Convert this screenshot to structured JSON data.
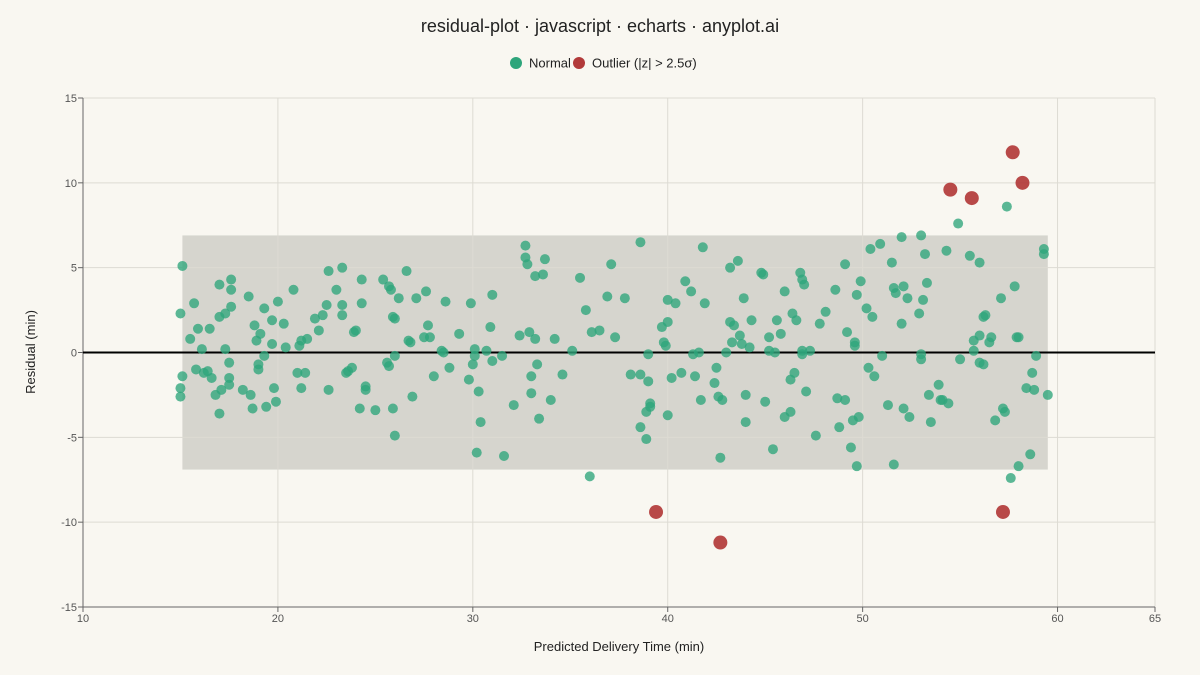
{
  "colors": {
    "background": "#f9f7f1",
    "normal": "#2ea57b",
    "outlier": "#b23a3a",
    "band": "#d6d5ce",
    "grid": "#dddbd3",
    "zero_line": "#000000",
    "axis": "#666666"
  },
  "chart_data": {
    "type": "scatter",
    "title": "residual-plot · javascript · echarts · anyplot.ai",
    "xlabel": "Predicted Delivery Time (min)",
    "ylabel": "Residual (min)",
    "xlim": [
      10,
      65
    ],
    "ylim": [
      -15,
      15
    ],
    "x_ticks": [
      10,
      20,
      30,
      40,
      50,
      60,
      65
    ],
    "y_ticks": [
      -15,
      -10,
      -5,
      0,
      5,
      10,
      15
    ],
    "grid": true,
    "legend_position": "top-center",
    "reference_line_y": 0,
    "band": {
      "y_min": -6.9,
      "y_max": 6.9,
      "x_min": 15.1,
      "x_max": 59.5
    },
    "series": [
      {
        "name": "Normal",
        "points": [
          [
            15.1,
            5.1
          ],
          [
            15.0,
            2.3
          ],
          [
            15.1,
            -1.4
          ],
          [
            15.0,
            -2.1
          ],
          [
            15.0,
            -2.6
          ],
          [
            15.5,
            0.8
          ],
          [
            15.7,
            2.9
          ],
          [
            15.9,
            1.4
          ],
          [
            16.1,
            0.2
          ],
          [
            15.8,
            -1.0
          ],
          [
            16.2,
            -1.2
          ],
          [
            16.4,
            -1.1
          ],
          [
            16.5,
            1.4
          ],
          [
            16.6,
            -1.5
          ],
          [
            16.8,
            -2.5
          ],
          [
            17.0,
            2.1
          ],
          [
            17.0,
            4.0
          ],
          [
            17.1,
            -2.2
          ],
          [
            17.0,
            -3.6
          ],
          [
            17.3,
            2.3
          ],
          [
            17.3,
            0.2
          ],
          [
            17.5,
            -0.6
          ],
          [
            17.5,
            -1.5
          ],
          [
            17.5,
            -1.9
          ],
          [
            17.6,
            2.7
          ],
          [
            17.6,
            4.3
          ],
          [
            17.6,
            3.7
          ],
          [
            18.2,
            -2.2
          ],
          [
            18.5,
            3.3
          ],
          [
            18.6,
            -2.5
          ],
          [
            18.7,
            -3.3
          ],
          [
            18.8,
            1.6
          ],
          [
            18.9,
            0.7
          ],
          [
            19.0,
            -0.7
          ],
          [
            19.0,
            -1.0
          ],
          [
            19.1,
            1.1
          ],
          [
            19.3,
            2.6
          ],
          [
            19.4,
            -3.2
          ],
          [
            19.3,
            -0.2
          ],
          [
            19.7,
            1.9
          ],
          [
            19.7,
            0.5
          ],
          [
            19.8,
            -2.1
          ],
          [
            19.9,
            -2.9
          ],
          [
            20.0,
            3.0
          ],
          [
            20.3,
            1.7
          ],
          [
            20.4,
            0.3
          ],
          [
            20.8,
            3.7
          ],
          [
            21.0,
            -1.2
          ],
          [
            21.1,
            0.4
          ],
          [
            21.2,
            0.7
          ],
          [
            21.2,
            -2.1
          ],
          [
            21.4,
            -1.2
          ],
          [
            21.5,
            0.8
          ],
          [
            21.9,
            2.0
          ],
          [
            22.1,
            1.3
          ],
          [
            22.3,
            2.2
          ],
          [
            22.5,
            2.8
          ],
          [
            22.6,
            4.8
          ],
          [
            22.6,
            -2.2
          ],
          [
            23.0,
            3.7
          ],
          [
            23.3,
            2.2
          ],
          [
            23.3,
            2.8
          ],
          [
            23.3,
            5.0
          ],
          [
            23.5,
            -1.2
          ],
          [
            23.6,
            -1.1
          ],
          [
            23.8,
            -0.9
          ],
          [
            23.9,
            1.2
          ],
          [
            24.0,
            1.3
          ],
          [
            24.2,
            -3.3
          ],
          [
            24.3,
            2.9
          ],
          [
            24.3,
            4.3
          ],
          [
            24.5,
            -2.0
          ],
          [
            24.5,
            -2.2
          ],
          [
            25.0,
            -3.4
          ],
          [
            25.4,
            4.3
          ],
          [
            25.6,
            -0.6
          ],
          [
            25.7,
            3.9
          ],
          [
            25.7,
            -0.8
          ],
          [
            25.8,
            3.7
          ],
          [
            25.9,
            2.1
          ],
          [
            25.9,
            -3.3
          ],
          [
            26.0,
            2.0
          ],
          [
            26.0,
            -0.2
          ],
          [
            26.0,
            -4.9
          ],
          [
            26.2,
            3.2
          ],
          [
            26.6,
            4.8
          ],
          [
            26.7,
            0.7
          ],
          [
            26.8,
            0.6
          ],
          [
            26.9,
            -2.6
          ],
          [
            27.1,
            3.2
          ],
          [
            27.5,
            0.9
          ],
          [
            27.6,
            3.6
          ],
          [
            27.7,
            1.6
          ],
          [
            27.8,
            0.9
          ],
          [
            28.0,
            -1.4
          ],
          [
            28.4,
            0.1
          ],
          [
            28.5,
            0.0
          ],
          [
            28.6,
            3.0
          ],
          [
            28.8,
            -0.9
          ],
          [
            29.3,
            1.1
          ],
          [
            29.8,
            -1.6
          ],
          [
            29.9,
            2.9
          ],
          [
            30.0,
            -0.7
          ],
          [
            30.1,
            -0.2
          ],
          [
            30.1,
            0.2
          ],
          [
            30.2,
            -5.9
          ],
          [
            30.3,
            -2.3
          ],
          [
            30.4,
            -4.1
          ],
          [
            30.7,
            0.1
          ],
          [
            30.9,
            1.5
          ],
          [
            31.0,
            3.4
          ],
          [
            31.0,
            -0.5
          ],
          [
            31.5,
            -0.2
          ],
          [
            31.6,
            -6.1
          ],
          [
            32.1,
            -3.1
          ],
          [
            32.4,
            1.0
          ],
          [
            32.7,
            6.3
          ],
          [
            32.7,
            5.6
          ],
          [
            32.8,
            5.2
          ],
          [
            32.9,
            1.2
          ],
          [
            33.0,
            -1.4
          ],
          [
            33.0,
            -2.4
          ],
          [
            33.2,
            4.5
          ],
          [
            33.2,
            0.8
          ],
          [
            33.3,
            -0.7
          ],
          [
            33.4,
            -3.9
          ],
          [
            33.6,
            4.6
          ],
          [
            33.7,
            5.5
          ],
          [
            34.0,
            -2.8
          ],
          [
            34.2,
            0.8
          ],
          [
            34.6,
            -1.3
          ],
          [
            35.1,
            0.1
          ],
          [
            35.5,
            4.4
          ],
          [
            35.8,
            2.5
          ],
          [
            36.0,
            -7.3
          ],
          [
            36.1,
            1.2
          ],
          [
            36.5,
            1.3
          ],
          [
            36.9,
            3.3
          ],
          [
            37.1,
            5.2
          ],
          [
            37.3,
            0.9
          ],
          [
            37.8,
            3.2
          ],
          [
            38.1,
            -1.3
          ],
          [
            38.6,
            6.5
          ],
          [
            38.6,
            -1.3
          ],
          [
            38.6,
            -4.4
          ],
          [
            38.9,
            -5.1
          ],
          [
            38.9,
            -3.5
          ],
          [
            39.0,
            -0.1
          ],
          [
            39.0,
            -1.7
          ],
          [
            39.1,
            -3.0
          ],
          [
            39.1,
            -3.2
          ],
          [
            39.7,
            1.5
          ],
          [
            39.8,
            0.6
          ],
          [
            39.9,
            0.4
          ],
          [
            40.0,
            3.1
          ],
          [
            40.0,
            1.8
          ],
          [
            40.0,
            -3.7
          ],
          [
            40.2,
            -1.5
          ],
          [
            40.4,
            2.9
          ],
          [
            40.7,
            -1.2
          ],
          [
            40.9,
            4.2
          ],
          [
            41.2,
            3.6
          ],
          [
            41.3,
            -0.1
          ],
          [
            41.4,
            -1.4
          ],
          [
            41.6,
            0.0
          ],
          [
            41.7,
            -2.8
          ],
          [
            41.8,
            6.2
          ],
          [
            41.9,
            2.9
          ],
          [
            42.4,
            -1.8
          ],
          [
            42.5,
            -0.9
          ],
          [
            42.6,
            -2.6
          ],
          [
            42.7,
            -6.2
          ],
          [
            42.8,
            -2.8
          ],
          [
            43.0,
            0.0
          ],
          [
            43.2,
            1.8
          ],
          [
            43.2,
            5.0
          ],
          [
            43.3,
            0.6
          ],
          [
            43.4,
            1.6
          ],
          [
            43.6,
            5.4
          ],
          [
            43.7,
            1.0
          ],
          [
            43.8,
            0.5
          ],
          [
            43.9,
            3.2
          ],
          [
            44.0,
            -2.5
          ],
          [
            44.0,
            -4.1
          ],
          [
            44.2,
            0.3
          ],
          [
            44.3,
            1.9
          ],
          [
            44.8,
            4.7
          ],
          [
            44.9,
            4.6
          ],
          [
            45.0,
            -2.9
          ],
          [
            45.2,
            0.1
          ],
          [
            45.2,
            0.9
          ],
          [
            45.4,
            -5.7
          ],
          [
            45.5,
            0.0
          ],
          [
            45.6,
            1.9
          ],
          [
            45.8,
            1.1
          ],
          [
            46.0,
            3.6
          ],
          [
            46.0,
            -3.8
          ],
          [
            46.3,
            -1.6
          ],
          [
            46.3,
            -3.5
          ],
          [
            46.4,
            2.3
          ],
          [
            46.5,
            -1.2
          ],
          [
            46.6,
            1.9
          ],
          [
            46.8,
            4.7
          ],
          [
            46.9,
            4.3
          ],
          [
            46.9,
            0.1
          ],
          [
            46.9,
            -0.1
          ],
          [
            47.0,
            4.0
          ],
          [
            47.1,
            -2.3
          ],
          [
            47.3,
            0.1
          ],
          [
            47.6,
            -4.9
          ],
          [
            47.8,
            1.7
          ],
          [
            48.1,
            2.4
          ],
          [
            48.6,
            3.7
          ],
          [
            48.7,
            -2.7
          ],
          [
            48.8,
            -4.4
          ],
          [
            49.1,
            5.2
          ],
          [
            49.1,
            -2.8
          ],
          [
            49.2,
            1.2
          ],
          [
            49.4,
            -5.6
          ],
          [
            49.5,
            -4.0
          ],
          [
            49.6,
            0.6
          ],
          [
            49.6,
            0.4
          ],
          [
            49.7,
            3.4
          ],
          [
            49.7,
            -6.7
          ],
          [
            49.8,
            -3.8
          ],
          [
            49.9,
            4.2
          ],
          [
            50.2,
            2.6
          ],
          [
            50.3,
            -0.9
          ],
          [
            50.4,
            6.1
          ],
          [
            50.5,
            2.1
          ],
          [
            50.6,
            -1.4
          ],
          [
            50.9,
            6.4
          ],
          [
            51.0,
            -0.2
          ],
          [
            51.3,
            -3.1
          ],
          [
            51.5,
            5.3
          ],
          [
            51.6,
            3.8
          ],
          [
            51.6,
            -6.6
          ],
          [
            51.7,
            3.5
          ],
          [
            52.0,
            6.8
          ],
          [
            52.0,
            1.7
          ],
          [
            52.1,
            3.9
          ],
          [
            52.1,
            -3.3
          ],
          [
            52.3,
            3.2
          ],
          [
            52.4,
            -3.8
          ],
          [
            52.9,
            2.3
          ],
          [
            53.0,
            6.9
          ],
          [
            53.0,
            -0.1
          ],
          [
            53.0,
            -0.4
          ],
          [
            53.1,
            3.1
          ],
          [
            53.2,
            5.8
          ],
          [
            53.3,
            4.1
          ],
          [
            53.4,
            -2.5
          ],
          [
            53.5,
            -4.1
          ],
          [
            53.9,
            -1.9
          ],
          [
            54.0,
            -2.8
          ],
          [
            54.1,
            -2.8
          ],
          [
            54.4,
            -3.0
          ],
          [
            54.3,
            6.0
          ],
          [
            54.9,
            7.6
          ],
          [
            55.0,
            -0.4
          ],
          [
            55.5,
            5.7
          ],
          [
            55.7,
            0.7
          ],
          [
            55.7,
            0.1
          ],
          [
            56.0,
            5.3
          ],
          [
            56.0,
            1.0
          ],
          [
            56.0,
            -0.6
          ],
          [
            56.2,
            -0.7
          ],
          [
            56.2,
            2.1
          ],
          [
            56.3,
            2.2
          ],
          [
            56.5,
            0.6
          ],
          [
            56.6,
            0.9
          ],
          [
            56.8,
            -4.0
          ],
          [
            57.1,
            3.2
          ],
          [
            57.2,
            -3.3
          ],
          [
            57.3,
            -3.5
          ],
          [
            57.4,
            8.6
          ],
          [
            57.6,
            -7.4
          ],
          [
            57.8,
            3.9
          ],
          [
            57.9,
            0.9
          ],
          [
            58.0,
            0.9
          ],
          [
            58.0,
            -6.7
          ],
          [
            58.4,
            -2.1
          ],
          [
            58.6,
            -6.0
          ],
          [
            58.7,
            -1.2
          ],
          [
            58.8,
            -2.2
          ],
          [
            58.9,
            -0.2
          ],
          [
            59.3,
            6.1
          ],
          [
            59.3,
            5.8
          ],
          [
            59.5,
            -2.5
          ]
        ]
      },
      {
        "name": "Outlier (|z| > 2.5σ)",
        "points": [
          [
            39.4,
            -9.4
          ],
          [
            42.7,
            -11.2
          ],
          [
            54.5,
            9.6
          ],
          [
            55.6,
            9.1
          ],
          [
            57.7,
            11.8
          ],
          [
            58.2,
            10.0
          ],
          [
            57.2,
            -9.4
          ]
        ]
      }
    ]
  }
}
